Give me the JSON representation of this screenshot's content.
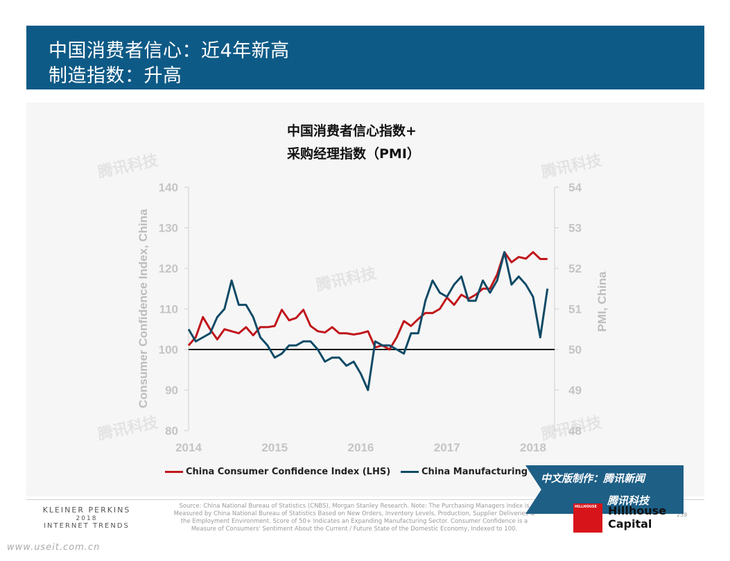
{
  "header": {
    "line1": "中国消费者信心：近4年新高",
    "line2": "制造指数：升高"
  },
  "chart_title": {
    "line1": "中国消费者信心指数+",
    "line2": "采购经理指数（PMI）"
  },
  "chart_data": {
    "type": "line",
    "ylabel_left": "Consumer Confidence Index, China",
    "ylabel_right": "PMI, China",
    "ylim_left": [
      80,
      140
    ],
    "ylim_right": [
      48,
      54
    ],
    "yticks_left": [
      80,
      90,
      100,
      110,
      120,
      130,
      140
    ],
    "yticks_right": [
      48,
      49,
      50,
      51,
      52,
      53,
      54
    ],
    "xlim": [
      2014.0,
      2018.25
    ],
    "xticks": [
      2014,
      2015,
      2016,
      2017,
      2018
    ],
    "xtick_labels": [
      "2014",
      "2015",
      "2016",
      "2017",
      "2018"
    ],
    "reference_line": {
      "axis": "left",
      "value": 100
    },
    "grid": false,
    "series": [
      {
        "name": "China Consumer Confidence Index (LHS)",
        "axis": "left",
        "color": "#c0151b",
        "x": [
          2014.0,
          2014.083,
          2014.167,
          2014.25,
          2014.333,
          2014.417,
          2014.5,
          2014.583,
          2014.667,
          2014.75,
          2014.833,
          2014.917,
          2015.0,
          2015.083,
          2015.167,
          2015.25,
          2015.333,
          2015.417,
          2015.5,
          2015.583,
          2015.667,
          2015.75,
          2015.833,
          2015.917,
          2016.0,
          2016.083,
          2016.167,
          2016.25,
          2016.333,
          2016.417,
          2016.5,
          2016.583,
          2016.667,
          2016.75,
          2016.833,
          2016.917,
          2017.0,
          2017.083,
          2017.167,
          2017.25,
          2017.333,
          2017.417,
          2017.5,
          2017.583,
          2017.667,
          2017.75,
          2017.833,
          2017.917,
          2018.0,
          2018.083,
          2018.167
        ],
        "values": [
          101,
          103,
          108,
          105,
          102.5,
          105,
          104.5,
          104,
          105.5,
          103.5,
          105.5,
          105.5,
          105.8,
          109.8,
          107.2,
          107.8,
          109.8,
          105.8,
          104.5,
          104.2,
          105.5,
          104,
          104,
          103.7,
          104,
          104.5,
          100.5,
          101,
          100,
          103,
          107,
          105.8,
          107.5,
          109,
          109,
          110,
          112.8,
          111,
          113.5,
          112.5,
          113.5,
          115,
          115,
          118.5,
          124,
          121.5,
          122.8,
          122.4,
          124,
          122.3,
          122.3
        ]
      },
      {
        "name": "China Manufacturing PMI (RHS)",
        "axis": "right",
        "color": "#0f4a66",
        "x": [
          2014.0,
          2014.083,
          2014.167,
          2014.25,
          2014.333,
          2014.417,
          2014.5,
          2014.583,
          2014.667,
          2014.75,
          2014.833,
          2014.917,
          2015.0,
          2015.083,
          2015.167,
          2015.25,
          2015.333,
          2015.417,
          2015.5,
          2015.583,
          2015.667,
          2015.75,
          2015.833,
          2015.917,
          2016.0,
          2016.083,
          2016.167,
          2016.25,
          2016.333,
          2016.417,
          2016.5,
          2016.583,
          2016.667,
          2016.75,
          2016.833,
          2016.917,
          2017.0,
          2017.083,
          2017.167,
          2017.25,
          2017.333,
          2017.417,
          2017.5,
          2017.583,
          2017.667,
          2017.75,
          2017.833,
          2017.917,
          2018.0,
          2018.083,
          2018.167
        ],
        "values": [
          50.5,
          50.2,
          50.3,
          50.4,
          50.8,
          51.0,
          51.7,
          51.1,
          51.1,
          50.8,
          50.3,
          50.1,
          49.8,
          49.9,
          50.1,
          50.1,
          50.2,
          50.2,
          50.0,
          49.7,
          49.8,
          49.8,
          49.6,
          49.7,
          49.4,
          49.0,
          50.2,
          50.1,
          50.1,
          50.0,
          49.9,
          50.4,
          50.4,
          51.2,
          51.7,
          51.4,
          51.3,
          51.6,
          51.8,
          51.2,
          51.2,
          51.7,
          51.4,
          51.7,
          52.4,
          51.6,
          51.8,
          51.6,
          51.3,
          50.3,
          51.5
        ]
      }
    ],
    "legend_position": "bottom"
  },
  "watermark": "腾讯科技",
  "footer": {
    "brand_line1": "KLEINER PERKINS",
    "brand_line2": "2018",
    "brand_line3": "INTERNET TRENDS",
    "source": "Source: China National Bureau of Statistics (CNBS), Morgan Stanley Research. Note: The Purchasing Managers Index is Measured by China National Bureau of Statistics Based on New Orders, Inventory Levels, Production, Supplier Deliveries & the Employment Environment. Score of 50+ Indicates an Expanding Manufacturing Sector. Consumer Confidence is a Measure of Consumers' Sentiment About the Current / Future State of the Domestic Economy, Indexed to 100.",
    "page_number": "239",
    "banner_line1": "中文版制作：腾讯新闻",
    "banner_line2": "腾讯科技",
    "logo_label": "HILLHOUSE",
    "logo_text_line1": "Hillhouse",
    "logo_text_line2": "Capital",
    "url": "www.useit.com.cn"
  }
}
